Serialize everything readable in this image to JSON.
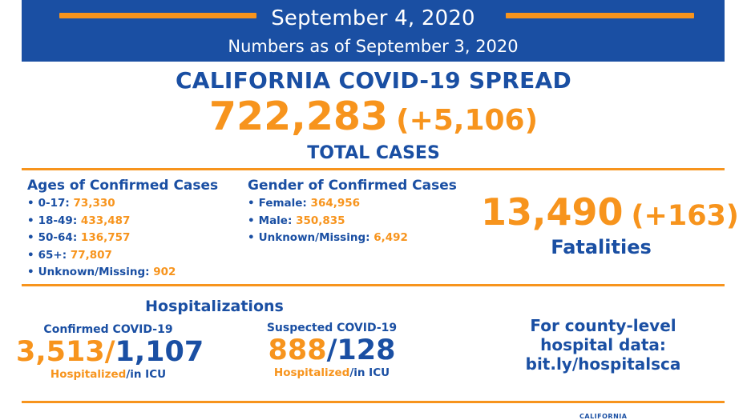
{
  "header": {
    "date": "September 4, 2020",
    "as_of": "Numbers as of September 3, 2020"
  },
  "spread": {
    "title": "CALIFORNIA COVID-19 SPREAD",
    "total": "722,283",
    "total_delta": "(+5,106)",
    "total_label": "TOTAL CASES"
  },
  "ages": {
    "title": "Ages of Confirmed Cases",
    "items": [
      {
        "label": "0-17:",
        "value": "73,330"
      },
      {
        "label": "18-49:",
        "value": "433,487"
      },
      {
        "label": "50-64:",
        "value": "136,757"
      },
      {
        "label": "65+:",
        "value": "77,807"
      },
      {
        "label": "Unknown/Missing:",
        "value": "902"
      }
    ]
  },
  "gender": {
    "title": "Gender of Confirmed Cases",
    "items": [
      {
        "label": "Female:",
        "value": "364,956"
      },
      {
        "label": "Male:",
        "value": "350,835"
      },
      {
        "label": "Unknown/Missing:",
        "value": "6,492"
      }
    ]
  },
  "fatalities": {
    "value": "13,490",
    "delta": "(+163)",
    "label": "Fatalities"
  },
  "hospitalizations": {
    "title": "Hospitalizations",
    "confirmed": {
      "label": "Confirmed COVID-19",
      "hospitalized": "3,513",
      "slash": "/",
      "icu": "1,107",
      "cap_hosp": "Hospitalized",
      "cap_icu": "/in ICU"
    },
    "suspected": {
      "label": "Suspected COVID-19",
      "hospitalized": "888",
      "slash": "/",
      "icu": "128",
      "cap_hosp": "Hospitalized",
      "cap_icu": "/in ICU"
    }
  },
  "county": {
    "line1": "For county-level",
    "line2": "hospital data:",
    "line3": "bit.ly/hospitalsca"
  },
  "footer": {
    "logo_text": "CALIFORNIA"
  },
  "colors": {
    "brand_blue": "#1a4fa3",
    "accent_orange": "#f7941d"
  },
  "icons": [
    "bullet-icon"
  ]
}
